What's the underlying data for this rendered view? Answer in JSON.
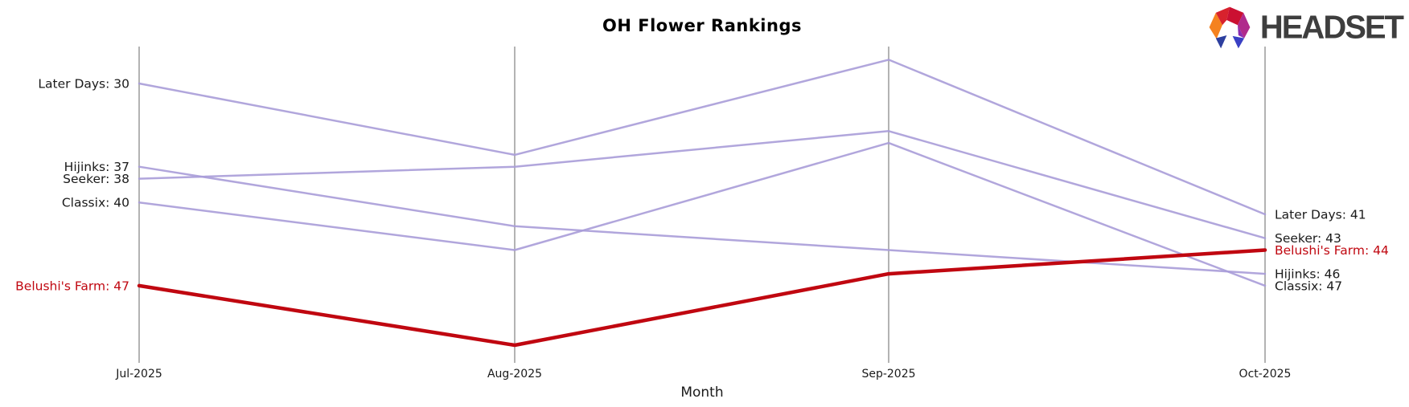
{
  "chart": {
    "title": "OH Flower Rankings",
    "xlabel": "Month"
  },
  "brand": {
    "logo_text": "HEADSET",
    "logo_icon": "headset-logo-icon",
    "logo_text_color": "#3e3e3e",
    "icon_colors": {
      "orange": "#f5821f",
      "red_left": "#d8222d",
      "red_right": "#cb1031",
      "magenta": "#b02a8c",
      "ear_left_navy": "#2d3f9f",
      "ear_right_indigo": "#3a40c4"
    }
  },
  "chart_data": {
    "type": "line",
    "title": "OH Flower Rankings",
    "xlabel": "Month",
    "x": [
      "Jul-2025",
      "Aug-2025",
      "Sep-2025",
      "Oct-2025"
    ],
    "y_inverted": true,
    "y_value_meaning": "ranking",
    "y_range_visible": [
      28,
      52
    ],
    "grid": false,
    "legend": "inline-edge-labels",
    "series": [
      {
        "name": "Later Days",
        "values": [
          30,
          36,
          28,
          41
        ],
        "color": "#a99cd8",
        "highlighted": false,
        "label_left": "Later Days: 30",
        "label_right": "Later Days: 41"
      },
      {
        "name": "Hijinks",
        "values": [
          37,
          42,
          44,
          46
        ],
        "color": "#a99cd8",
        "highlighted": false,
        "label_left": "Hijinks: 37",
        "label_right": "Hijinks: 46"
      },
      {
        "name": "Seeker",
        "values": [
          38,
          37,
          34,
          43
        ],
        "color": "#a99cd8",
        "highlighted": false,
        "label_left": "Seeker: 38",
        "label_right": "Seeker: 43"
      },
      {
        "name": "Classix",
        "values": [
          40,
          44,
          35,
          47
        ],
        "color": "#a99cd8",
        "highlighted": false,
        "label_left": "Classix: 40",
        "label_right": "Classix: 47"
      },
      {
        "name": "Belushi's Farm",
        "values": [
          47,
          52,
          46,
          44
        ],
        "color": "#c00710",
        "highlighted": true,
        "label_left": "Belushi's Farm: 47",
        "label_right": "Belushi's Farm: 44"
      }
    ],
    "colors": {
      "line_default": "#a99cd8",
      "line_highlight": "#c00710",
      "axis": "#b3b3b3",
      "label_text": "#1a1a1a"
    }
  }
}
